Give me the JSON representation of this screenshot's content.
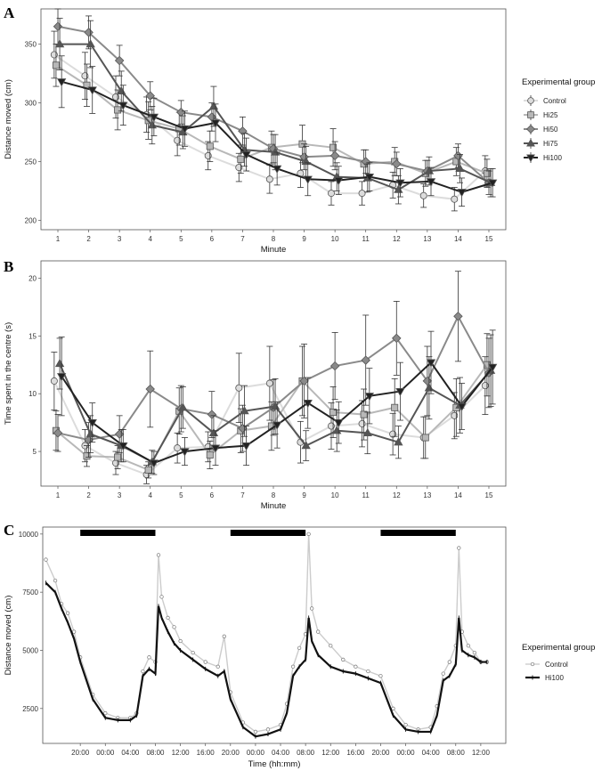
{
  "chart_data": [
    {
      "panel": "A",
      "type": "line",
      "xlabel": "Minute",
      "ylabel": "Distance moved (cm)",
      "x": [
        1,
        2,
        3,
        4,
        5,
        6,
        7,
        8,
        9,
        10,
        11,
        12,
        13,
        14,
        15
      ],
      "xticks": [
        "1",
        "2",
        "3",
        "4",
        "5",
        "6",
        "7",
        "8",
        "9",
        "10",
        "11",
        "12",
        "13",
        "14",
        "15"
      ],
      "yticks": [
        200,
        250,
        300,
        350
      ],
      "ylim": [
        192,
        380
      ],
      "legend_title": "Experimental group",
      "series": [
        {
          "name": "Control",
          "marker": "circle",
          "color": "#dcdcdc",
          "values": [
            341,
            323,
            305,
            290,
            268,
            255,
            245,
            235,
            240,
            223,
            223,
            230,
            221,
            218,
            242
          ],
          "err": [
            20,
            20,
            18,
            15,
            13,
            12,
            12,
            12,
            12,
            10,
            10,
            11,
            10,
            10,
            13
          ]
        },
        {
          "name": "Hi25",
          "marker": "square",
          "color": "#b8b8b8",
          "values": [
            332,
            315,
            294,
            285,
            278,
            263,
            252,
            262,
            265,
            262,
            248,
            250,
            240,
            250,
            240
          ],
          "err": [
            18,
            18,
            17,
            16,
            14,
            13,
            12,
            14,
            16,
            16,
            12,
            12,
            11,
            12,
            12
          ]
        },
        {
          "name": "Hi50",
          "marker": "diamond",
          "color": "#8a8a8a",
          "values": [
            365,
            360,
            336,
            306,
            292,
            288,
            276,
            261,
            254,
            255,
            250,
            248,
            242,
            255,
            232
          ],
          "err": [
            15,
            14,
            13,
            12,
            10,
            12,
            12,
            12,
            11,
            12,
            10,
            10,
            9,
            10,
            10
          ]
        },
        {
          "name": "Hi75",
          "marker": "triangle-up",
          "color": "#555555",
          "values": [
            350,
            350,
            310,
            281,
            275,
            297,
            260,
            258,
            250,
            237,
            236,
            226,
            242,
            244,
            232
          ],
          "err": [
            22,
            20,
            17,
            16,
            14,
            17,
            14,
            15,
            13,
            12,
            12,
            12,
            12,
            12,
            12
          ]
        },
        {
          "name": "Hi100",
          "marker": "triangle-down",
          "color": "#222222",
          "values": [
            318,
            311,
            298,
            288,
            278,
            283,
            256,
            244,
            235,
            234,
            237,
            232,
            233,
            224,
            232
          ],
          "err": [
            22,
            20,
            17,
            16,
            15,
            16,
            14,
            14,
            14,
            12,
            12,
            12,
            12,
            12,
            12
          ]
        }
      ]
    },
    {
      "panel": "B",
      "type": "line",
      "xlabel": "Minute",
      "ylabel": "Time spent in the centre (s)",
      "x": [
        1,
        2,
        3,
        4,
        5,
        6,
        7,
        8,
        9,
        10,
        11,
        12,
        13,
        14,
        15
      ],
      "xticks": [
        "1",
        "2",
        "3",
        "4",
        "5",
        "6",
        "7",
        "8",
        "9",
        "10",
        "11",
        "12",
        "13",
        "14",
        "15"
      ],
      "yticks": [
        5,
        10,
        15,
        20
      ],
      "ylim": [
        2,
        21.5
      ],
      "legend_title": "Experimental group",
      "series": [
        {
          "name": "Control",
          "marker": "circle",
          "color": "#dcdcdc",
          "values": [
            11.1,
            5.5,
            4.0,
            3.0,
            5.3,
            5.4,
            10.5,
            10.9,
            5.8,
            7.2,
            7.4,
            6.5,
            6.2,
            8.1,
            10.7
          ],
          "err": [
            2.5,
            1.4,
            1.0,
            0.8,
            1.3,
            1.3,
            3.0,
            3.2,
            1.8,
            2.0,
            2.0,
            1.8,
            1.8,
            2.0,
            2.5
          ]
        },
        {
          "name": "Hi25",
          "marker": "square",
          "color": "#b8b8b8",
          "values": [
            6.8,
            4.6,
            4.5,
            3.4,
            8.5,
            4.7,
            6.8,
            7.2,
            11.1,
            8.4,
            8.2,
            8.8,
            6.2,
            8.8,
            12.5
          ],
          "err": [
            1.7,
            0.9,
            1.0,
            0.7,
            2.0,
            1.2,
            1.9,
            2.1,
            3.0,
            2.2,
            2.2,
            2.5,
            1.8,
            2.5,
            2.7
          ]
        },
        {
          "name": "Hi50",
          "marker": "diamond",
          "color": "#8a8a8a",
          "values": [
            6.6,
            6.0,
            6.5,
            10.4,
            8.7,
            8.2,
            7.0,
            8.8,
            11.1,
            12.4,
            12.9,
            14.8,
            11.1,
            16.7,
            11.8
          ],
          "err": [
            1.6,
            1.5,
            1.6,
            3.3,
            2.0,
            2.0,
            2.0,
            2.4,
            3.2,
            2.9,
            3.9,
            3.2,
            3.0,
            3.9,
            3.0
          ]
        },
        {
          "name": "Hi75",
          "marker": "triangle-up",
          "color": "#555555",
          "values": [
            12.6,
            6.5,
            5.5,
            4.1,
            8.8,
            6.6,
            8.5,
            8.9,
            5.5,
            6.8,
            6.6,
            5.8,
            10.5,
            9.0,
            12.0
          ],
          "err": [
            2.2,
            1.6,
            1.4,
            1.0,
            1.8,
            1.5,
            2.2,
            2.4,
            1.3,
            1.8,
            1.8,
            1.4,
            2.7,
            2.4,
            3.1
          ]
        },
        {
          "name": "Hi100",
          "marker": "triangle-down",
          "color": "#222222",
          "values": [
            11.5,
            7.5,
            5.5,
            4.0,
            5.0,
            5.3,
            5.5,
            7.3,
            9.2,
            7.5,
            9.8,
            10.2,
            12.7,
            8.9,
            12.3
          ],
          "err": [
            3.4,
            1.7,
            1.4,
            1.0,
            1.2,
            1.5,
            1.7,
            2.0,
            2.2,
            1.8,
            2.4,
            2.5,
            2.7,
            2.0,
            3.2
          ]
        }
      ]
    },
    {
      "panel": "C",
      "type": "line",
      "xlabel": "Time (hh:mm)",
      "ylabel": "Distance moved (cm)",
      "xticks": [
        "20:00",
        "00:00",
        "04:00",
        "08:00",
        "12:00",
        "16:00",
        "20:00",
        "00:00",
        "04:00",
        "08:00",
        "12:00",
        "16:00",
        "20:00",
        "00:00",
        "04:00",
        "08:00",
        "12:00"
      ],
      "xtick_hours": [
        20,
        24,
        28,
        32,
        36,
        40,
        44,
        48,
        52,
        56,
        60,
        64,
        68,
        72,
        76,
        80,
        84
      ],
      "yticks": [
        2500,
        5000,
        7500,
        10000
      ],
      "ylim": [
        1000,
        10300
      ],
      "xlim_hours": [
        14,
        88
      ],
      "dark_periods_hours": [
        [
          20,
          32
        ],
        [
          44,
          56
        ],
        [
          68,
          80
        ]
      ],
      "legend_title": "Experimental group",
      "series": [
        {
          "name": "Control",
          "marker": "open-circle",
          "color": "#cccccc",
          "x_hours": [
            14.5,
            16,
            17,
            18,
            19,
            20,
            22,
            24,
            26,
            28,
            29,
            30,
            31,
            32,
            32.5,
            33,
            34,
            35,
            36,
            38,
            40,
            42,
            43,
            44,
            46,
            48,
            50,
            52,
            53,
            54,
            55,
            56,
            56.5,
            57,
            58,
            60,
            62,
            64,
            66,
            68,
            70,
            72,
            74,
            76,
            77,
            78,
            79,
            80,
            80.5,
            81,
            82,
            83,
            84,
            85
          ],
          "values": [
            8900,
            8000,
            7000,
            6600,
            5800,
            4700,
            3100,
            2300,
            2100,
            2100,
            2300,
            4100,
            4700,
            4500,
            9100,
            7300,
            6400,
            6000,
            5400,
            4900,
            4500,
            4300,
            5600,
            3200,
            1900,
            1500,
            1600,
            1800,
            2700,
            4300,
            5100,
            5700,
            10000,
            6800,
            5800,
            5200,
            4600,
            4300,
            4100,
            3900,
            2500,
            1800,
            1600,
            1700,
            2600,
            4000,
            4500,
            5200,
            9400,
            5800,
            5200,
            4900,
            4500,
            4500
          ]
        },
        {
          "name": "Hi100",
          "marker": "line",
          "color": "#111111",
          "x_hours": [
            14.5,
            16,
            17,
            18,
            19,
            20,
            22,
            24,
            26,
            28,
            29,
            30,
            31,
            32,
            32.5,
            33,
            34,
            35,
            36,
            38,
            40,
            42,
            43,
            44,
            46,
            48,
            50,
            52,
            53,
            54,
            55,
            56,
            56.5,
            57,
            58,
            60,
            62,
            64,
            66,
            68,
            70,
            72,
            74,
            76,
            77,
            78,
            79,
            80,
            80.5,
            81,
            82,
            83,
            84,
            85
          ],
          "values": [
            7900,
            7500,
            6800,
            6200,
            5500,
            4500,
            2900,
            2100,
            2000,
            2000,
            2200,
            3900,
            4200,
            4000,
            6900,
            6400,
            5800,
            5300,
            5000,
            4600,
            4200,
            3900,
            4100,
            2900,
            1700,
            1300,
            1400,
            1600,
            2300,
            3900,
            4300,
            4600,
            6400,
            5400,
            4800,
            4300,
            4100,
            4000,
            3800,
            3600,
            2200,
            1600,
            1500,
            1500,
            2200,
            3700,
            3900,
            4400,
            6400,
            5000,
            4800,
            4700,
            4500,
            4500
          ]
        }
      ]
    }
  ],
  "panels": {
    "A": {
      "letter": "A"
    },
    "B": {
      "letter": "B"
    },
    "C": {
      "letter": "C"
    }
  }
}
